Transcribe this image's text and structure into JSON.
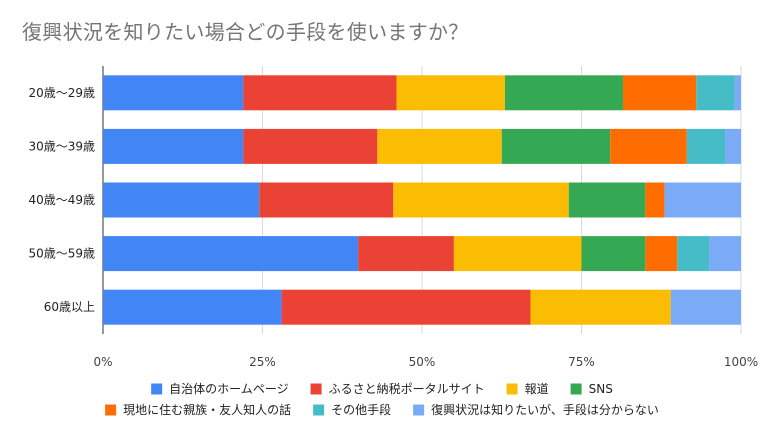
{
  "chart_data": {
    "type": "bar",
    "orientation": "horizontal",
    "stacked": "percent",
    "title": "復興状況を知りたい場合どの手段を使いますか？",
    "categories": [
      "20歳～29歳",
      "30歳～39歳",
      "40歳～49歳",
      "50歳～59歳",
      "60歳以上"
    ],
    "x_ticks": [
      "0%",
      "25%",
      "50%",
      "75%",
      "100%"
    ],
    "xlim": [
      0,
      100
    ],
    "grid": true,
    "legend_position": "bottom",
    "series": [
      {
        "name": "自治体のホームページ",
        "color": "#4285f4",
        "values": [
          22,
          22,
          24.5,
          40,
          28
        ]
      },
      {
        "name": "ふるさと納税ポータルサイト",
        "color": "#ea4335",
        "values": [
          24,
          21,
          21,
          15,
          39
        ]
      },
      {
        "name": "報道",
        "color": "#fbbc04",
        "values": [
          17,
          19.5,
          27.5,
          20,
          22
        ]
      },
      {
        "name": "SNS",
        "color": "#34a853",
        "values": [
          18.5,
          17,
          12,
          10,
          0
        ]
      },
      {
        "name": "現地に住む親族・友人知人の話",
        "color": "#ff6d01",
        "values": [
          11.5,
          12,
          3,
          5,
          0
        ]
      },
      {
        "name": "その他手段",
        "color": "#46bdc6",
        "values": [
          6,
          6,
          0,
          5,
          0
        ]
      },
      {
        "name": "復興状況は知りたいが、手段は分からない",
        "color": "#7baaf7",
        "values": [
          1,
          2.5,
          12,
          5,
          11
        ]
      }
    ]
  }
}
